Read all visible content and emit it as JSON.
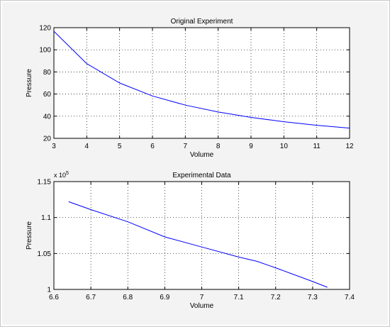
{
  "colors": {
    "line": "#0000ff",
    "axes": "#000000",
    "grid": "#000000",
    "figure_bg": "#f3f3f3",
    "axes_bg": "#ffffff"
  },
  "chart_data": [
    {
      "type": "line",
      "title": "Original Experiment",
      "xlabel": "Volume",
      "ylabel": "Pressure",
      "xlim": [
        3,
        12
      ],
      "ylim": [
        20,
        120
      ],
      "xticks": [
        3,
        4,
        5,
        6,
        7,
        8,
        9,
        10,
        11,
        12
      ],
      "yticks": [
        20,
        40,
        60,
        80,
        100,
        120
      ],
      "xtick_labels": [
        "3",
        "4",
        "5",
        "6",
        "7",
        "8",
        "9",
        "10",
        "11",
        "12"
      ],
      "ytick_labels": [
        "20",
        "40",
        "60",
        "80",
        "100",
        "120"
      ],
      "grid": true,
      "series": [
        {
          "x": [
            3,
            4,
            5,
            6,
            7,
            8,
            9,
            10,
            11,
            12
          ],
          "y": [
            116.7,
            87.5,
            70,
            58.3,
            50,
            43.75,
            38.9,
            35,
            31.8,
            29.2
          ]
        }
      ]
    },
    {
      "type": "line",
      "title": "Experimental Data",
      "xlabel": "Volume",
      "ylabel": "Pressure",
      "exponent_label": "x 10",
      "exponent_power": "5",
      "xlim": [
        6.6,
        7.4
      ],
      "ylim": [
        1.0,
        1.15
      ],
      "xticks": [
        6.6,
        6.7,
        6.8,
        6.9,
        7.0,
        7.1,
        7.2,
        7.3,
        7.4
      ],
      "yticks": [
        1.0,
        1.05,
        1.1,
        1.15
      ],
      "xtick_labels": [
        "6.6",
        "6.7",
        "6.8",
        "6.9",
        "7",
        "7.1",
        "7.2",
        "7.3",
        "7.4"
      ],
      "ytick_labels": [
        "1",
        "1.05",
        "1.1",
        "1.15"
      ],
      "grid": true,
      "series": [
        {
          "x": [
            6.64,
            6.7,
            6.8,
            6.9,
            7.0,
            7.1,
            7.15,
            7.2,
            7.3,
            7.34
          ],
          "y": [
            1.122,
            1.111,
            1.094,
            1.073,
            1.059,
            1.045,
            1.039,
            1.03,
            1.011,
            1.003
          ]
        }
      ]
    }
  ]
}
